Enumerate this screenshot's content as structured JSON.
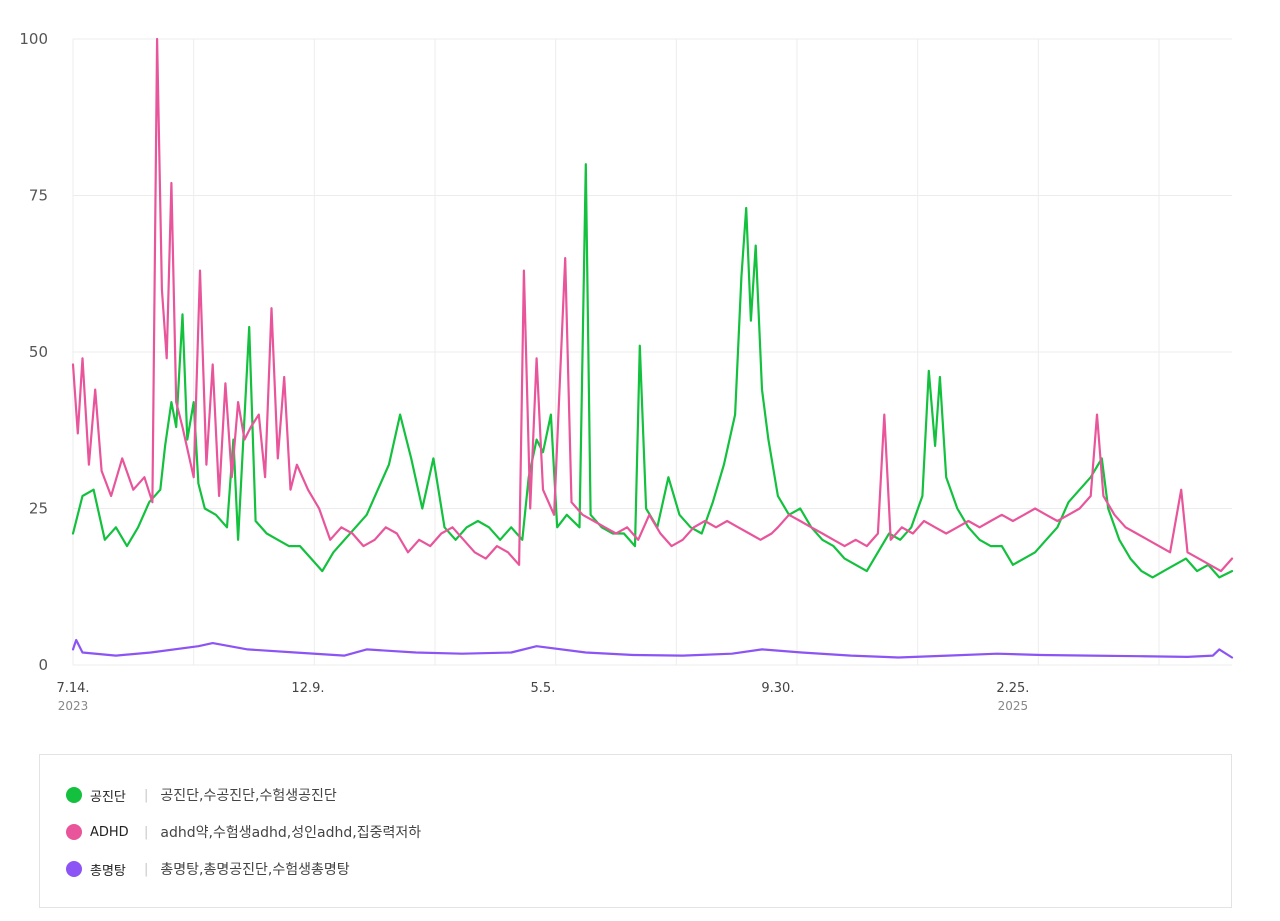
{
  "chart_data": {
    "type": "line",
    "ylim": [
      0,
      100
    ],
    "yticks": [
      "0",
      "25",
      "50",
      "75",
      "100"
    ],
    "x_ticks": [
      {
        "label": "7.14.",
        "year": "2023",
        "date": "2023-07-14"
      },
      {
        "label": "12.9.",
        "year": "",
        "date": "2023-12-09"
      },
      {
        "label": "5.5.",
        "year": "",
        "date": "2024-05-05"
      },
      {
        "label": "9.30.",
        "year": "",
        "date": "2024-09-30"
      },
      {
        "label": "2.25.",
        "year": "2025",
        "date": "2025-02-25"
      }
    ],
    "x_range": [
      "2023-07-14",
      "2025-07-13"
    ],
    "grid": true,
    "legend_position": "bottom",
    "series": [
      {
        "name": "공진단",
        "color": "#13c13e",
        "keywords": "공진단,수공진단,수험생공진단",
        "points": [
          [
            "2023-07-14",
            21
          ],
          [
            "2023-07-20",
            27
          ],
          [
            "2023-07-27",
            28
          ],
          [
            "2023-08-03",
            20
          ],
          [
            "2023-08-10",
            22
          ],
          [
            "2023-08-17",
            19
          ],
          [
            "2023-08-24",
            22
          ],
          [
            "2023-08-31",
            26
          ],
          [
            "2023-09-07",
            28
          ],
          [
            "2023-09-10",
            35
          ],
          [
            "2023-09-14",
            42
          ],
          [
            "2023-09-17",
            38
          ],
          [
            "2023-09-21",
            56
          ],
          [
            "2023-09-24",
            36
          ],
          [
            "2023-09-28",
            42
          ],
          [
            "2023-10-01",
            29
          ],
          [
            "2023-10-05",
            25
          ],
          [
            "2023-10-12",
            24
          ],
          [
            "2023-10-19",
            22
          ],
          [
            "2023-10-23",
            36
          ],
          [
            "2023-10-26",
            20
          ],
          [
            "2023-11-02",
            54
          ],
          [
            "2023-11-06",
            23
          ],
          [
            "2023-11-13",
            21
          ],
          [
            "2023-11-20",
            20
          ],
          [
            "2023-11-27",
            19
          ],
          [
            "2023-12-04",
            19
          ],
          [
            "2023-12-11",
            17
          ],
          [
            "2023-12-18",
            15
          ],
          [
            "2023-12-25",
            18
          ],
          [
            "2024-01-01",
            20
          ],
          [
            "2024-01-08",
            22
          ],
          [
            "2024-01-15",
            24
          ],
          [
            "2024-01-22",
            28
          ],
          [
            "2024-01-29",
            32
          ],
          [
            "2024-02-05",
            40
          ],
          [
            "2024-02-12",
            33
          ],
          [
            "2024-02-19",
            25
          ],
          [
            "2024-02-26",
            33
          ],
          [
            "2024-03-04",
            22
          ],
          [
            "2024-03-11",
            20
          ],
          [
            "2024-03-18",
            22
          ],
          [
            "2024-03-25",
            23
          ],
          [
            "2024-04-01",
            22
          ],
          [
            "2024-04-08",
            20
          ],
          [
            "2024-04-15",
            22
          ],
          [
            "2024-04-22",
            20
          ],
          [
            "2024-04-26",
            30
          ],
          [
            "2024-05-01",
            36
          ],
          [
            "2024-05-05",
            34
          ],
          [
            "2024-05-10",
            40
          ],
          [
            "2024-05-14",
            22
          ],
          [
            "2024-05-20",
            24
          ],
          [
            "2024-05-28",
            22
          ],
          [
            "2024-06-01",
            80
          ],
          [
            "2024-06-04",
            24
          ],
          [
            "2024-06-11",
            22
          ],
          [
            "2024-06-18",
            21
          ],
          [
            "2024-06-25",
            21
          ],
          [
            "2024-07-02",
            19
          ],
          [
            "2024-07-05",
            51
          ],
          [
            "2024-07-09",
            25
          ],
          [
            "2024-07-16",
            22
          ],
          [
            "2024-07-23",
            30
          ],
          [
            "2024-07-30",
            24
          ],
          [
            "2024-08-06",
            22
          ],
          [
            "2024-08-13",
            21
          ],
          [
            "2024-08-20",
            26
          ],
          [
            "2024-08-27",
            32
          ],
          [
            "2024-09-03",
            40
          ],
          [
            "2024-09-07",
            62
          ],
          [
            "2024-09-10",
            73
          ],
          [
            "2024-09-13",
            55
          ],
          [
            "2024-09-16",
            67
          ],
          [
            "2024-09-20",
            44
          ],
          [
            "2024-09-24",
            36
          ],
          [
            "2024-09-30",
            27
          ],
          [
            "2024-10-07",
            24
          ],
          [
            "2024-10-14",
            25
          ],
          [
            "2024-10-21",
            22
          ],
          [
            "2024-10-28",
            20
          ],
          [
            "2024-11-04",
            19
          ],
          [
            "2024-11-11",
            17
          ],
          [
            "2024-11-18",
            16
          ],
          [
            "2024-11-25",
            15
          ],
          [
            "2024-12-02",
            18
          ],
          [
            "2024-12-09",
            21
          ],
          [
            "2024-12-16",
            20
          ],
          [
            "2024-12-23",
            22
          ],
          [
            "2024-12-30",
            27
          ],
          [
            "2025-01-03",
            47
          ],
          [
            "2025-01-07",
            35
          ],
          [
            "2025-01-10",
            46
          ],
          [
            "2025-01-14",
            30
          ],
          [
            "2025-01-21",
            25
          ],
          [
            "2025-01-28",
            22
          ],
          [
            "2025-02-04",
            20
          ],
          [
            "2025-02-11",
            19
          ],
          [
            "2025-02-18",
            19
          ],
          [
            "2025-02-25",
            16
          ],
          [
            "2025-03-04",
            17
          ],
          [
            "2025-03-11",
            18
          ],
          [
            "2025-03-18",
            20
          ],
          [
            "2025-03-25",
            22
          ],
          [
            "2025-04-01",
            26
          ],
          [
            "2025-04-08",
            28
          ],
          [
            "2025-04-15",
            30
          ],
          [
            "2025-04-22",
            33
          ],
          [
            "2025-04-26",
            25
          ],
          [
            "2025-05-03",
            20
          ],
          [
            "2025-05-10",
            17
          ],
          [
            "2025-05-17",
            15
          ],
          [
            "2025-05-24",
            14
          ],
          [
            "2025-05-31",
            15
          ],
          [
            "2025-06-07",
            16
          ],
          [
            "2025-06-14",
            17
          ],
          [
            "2025-06-21",
            15
          ],
          [
            "2025-06-28",
            16
          ],
          [
            "2025-07-05",
            14
          ],
          [
            "2025-07-13",
            15
          ]
        ]
      },
      {
        "name": "ADHD",
        "color": "#e8559b",
        "keywords": "adhd약,수험생adhd,성인adhd,집중력저하",
        "points": [
          [
            "2023-07-14",
            48
          ],
          [
            "2023-07-17",
            37
          ],
          [
            "2023-07-20",
            49
          ],
          [
            "2023-07-24",
            32
          ],
          [
            "2023-07-28",
            44
          ],
          [
            "2023-08-01",
            31
          ],
          [
            "2023-08-07",
            27
          ],
          [
            "2023-08-14",
            33
          ],
          [
            "2023-08-21",
            28
          ],
          [
            "2023-08-28",
            30
          ],
          [
            "2023-09-02",
            26
          ],
          [
            "2023-09-05",
            100
          ],
          [
            "2023-09-08",
            60
          ],
          [
            "2023-09-11",
            49
          ],
          [
            "2023-09-14",
            77
          ],
          [
            "2023-09-17",
            42
          ],
          [
            "2023-09-21",
            38
          ],
          [
            "2023-09-28",
            30
          ],
          [
            "2023-10-02",
            63
          ],
          [
            "2023-10-06",
            32
          ],
          [
            "2023-10-10",
            48
          ],
          [
            "2023-10-14",
            27
          ],
          [
            "2023-10-18",
            45
          ],
          [
            "2023-10-22",
            30
          ],
          [
            "2023-10-26",
            42
          ],
          [
            "2023-10-30",
            36
          ],
          [
            "2023-11-03",
            38
          ],
          [
            "2023-11-08",
            40
          ],
          [
            "2023-11-12",
            30
          ],
          [
            "2023-11-16",
            57
          ],
          [
            "2023-11-20",
            33
          ],
          [
            "2023-11-24",
            46
          ],
          [
            "2023-11-28",
            28
          ],
          [
            "2023-12-02",
            32
          ],
          [
            "2023-12-09",
            28
          ],
          [
            "2023-12-16",
            25
          ],
          [
            "2023-12-23",
            20
          ],
          [
            "2023-12-30",
            22
          ],
          [
            "2024-01-06",
            21
          ],
          [
            "2024-01-13",
            19
          ],
          [
            "2024-01-20",
            20
          ],
          [
            "2024-01-27",
            22
          ],
          [
            "2024-02-03",
            21
          ],
          [
            "2024-02-10",
            18
          ],
          [
            "2024-02-17",
            20
          ],
          [
            "2024-02-24",
            19
          ],
          [
            "2024-03-02",
            21
          ],
          [
            "2024-03-09",
            22
          ],
          [
            "2024-03-16",
            20
          ],
          [
            "2024-03-23",
            18
          ],
          [
            "2024-03-30",
            17
          ],
          [
            "2024-04-06",
            19
          ],
          [
            "2024-04-13",
            18
          ],
          [
            "2024-04-20",
            16
          ],
          [
            "2024-04-23",
            63
          ],
          [
            "2024-04-27",
            25
          ],
          [
            "2024-05-01",
            49
          ],
          [
            "2024-05-05",
            28
          ],
          [
            "2024-05-12",
            24
          ],
          [
            "2024-05-19",
            65
          ],
          [
            "2024-05-23",
            26
          ],
          [
            "2024-05-30",
            24
          ],
          [
            "2024-06-06",
            23
          ],
          [
            "2024-06-13",
            22
          ],
          [
            "2024-06-20",
            21
          ],
          [
            "2024-06-27",
            22
          ],
          [
            "2024-07-04",
            20
          ],
          [
            "2024-07-11",
            24
          ],
          [
            "2024-07-18",
            21
          ],
          [
            "2024-07-25",
            19
          ],
          [
            "2024-08-01",
            20
          ],
          [
            "2024-08-08",
            22
          ],
          [
            "2024-08-15",
            23
          ],
          [
            "2024-08-22",
            22
          ],
          [
            "2024-08-29",
            23
          ],
          [
            "2024-09-05",
            22
          ],
          [
            "2024-09-12",
            21
          ],
          [
            "2024-09-19",
            20
          ],
          [
            "2024-09-26",
            21
          ],
          [
            "2024-09-30",
            22
          ],
          [
            "2024-10-07",
            24
          ],
          [
            "2024-10-14",
            23
          ],
          [
            "2024-10-21",
            22
          ],
          [
            "2024-10-28",
            21
          ],
          [
            "2024-11-04",
            20
          ],
          [
            "2024-11-11",
            19
          ],
          [
            "2024-11-18",
            20
          ],
          [
            "2024-11-25",
            19
          ],
          [
            "2024-12-02",
            21
          ],
          [
            "2024-12-06",
            40
          ],
          [
            "2024-12-10",
            20
          ],
          [
            "2024-12-17",
            22
          ],
          [
            "2024-12-24",
            21
          ],
          [
            "2024-12-31",
            23
          ],
          [
            "2025-01-07",
            22
          ],
          [
            "2025-01-14",
            21
          ],
          [
            "2025-01-21",
            22
          ],
          [
            "2025-01-28",
            23
          ],
          [
            "2025-02-04",
            22
          ],
          [
            "2025-02-11",
            23
          ],
          [
            "2025-02-18",
            24
          ],
          [
            "2025-02-25",
            23
          ],
          [
            "2025-03-04",
            24
          ],
          [
            "2025-03-11",
            25
          ],
          [
            "2025-03-18",
            24
          ],
          [
            "2025-03-25",
            23
          ],
          [
            "2025-04-01",
            24
          ],
          [
            "2025-04-08",
            25
          ],
          [
            "2025-04-15",
            27
          ],
          [
            "2025-04-19",
            40
          ],
          [
            "2025-04-23",
            27
          ],
          [
            "2025-04-30",
            24
          ],
          [
            "2025-05-07",
            22
          ],
          [
            "2025-05-14",
            21
          ],
          [
            "2025-05-21",
            20
          ],
          [
            "2025-05-28",
            19
          ],
          [
            "2025-06-04",
            18
          ],
          [
            "2025-06-11",
            28
          ],
          [
            "2025-06-15",
            18
          ],
          [
            "2025-06-22",
            17
          ],
          [
            "2025-06-29",
            16
          ],
          [
            "2025-07-06",
            15
          ],
          [
            "2025-07-13",
            17
          ]
        ]
      },
      {
        "name": "총명탕",
        "color": "#8c54f5",
        "keywords": "총명탕,총명공진단,수험생총명탕",
        "points": [
          [
            "2023-07-14",
            2.5
          ],
          [
            "2023-07-16",
            4
          ],
          [
            "2023-07-20",
            2
          ],
          [
            "2023-08-10",
            1.5
          ],
          [
            "2023-09-01",
            2
          ],
          [
            "2023-10-01",
            3
          ],
          [
            "2023-10-10",
            3.5
          ],
          [
            "2023-11-01",
            2.5
          ],
          [
            "2023-12-01",
            2
          ],
          [
            "2024-01-01",
            1.5
          ],
          [
            "2024-01-15",
            2.5
          ],
          [
            "2024-02-15",
            2
          ],
          [
            "2024-03-15",
            1.8
          ],
          [
            "2024-04-15",
            2
          ],
          [
            "2024-05-01",
            3
          ],
          [
            "2024-06-01",
            2
          ],
          [
            "2024-07-01",
            1.6
          ],
          [
            "2024-08-01",
            1.5
          ],
          [
            "2024-09-01",
            1.8
          ],
          [
            "2024-09-20",
            2.5
          ],
          [
            "2024-10-15",
            2
          ],
          [
            "2024-11-15",
            1.5
          ],
          [
            "2024-12-15",
            1.2
          ],
          [
            "2025-01-15",
            1.5
          ],
          [
            "2025-02-15",
            1.8
          ],
          [
            "2025-03-15",
            1.6
          ],
          [
            "2025-04-15",
            1.5
          ],
          [
            "2025-05-15",
            1.4
          ],
          [
            "2025-06-15",
            1.3
          ],
          [
            "2025-07-01",
            1.5
          ],
          [
            "2025-07-05",
            2.5
          ],
          [
            "2025-07-13",
            1.2
          ]
        ]
      }
    ]
  }
}
